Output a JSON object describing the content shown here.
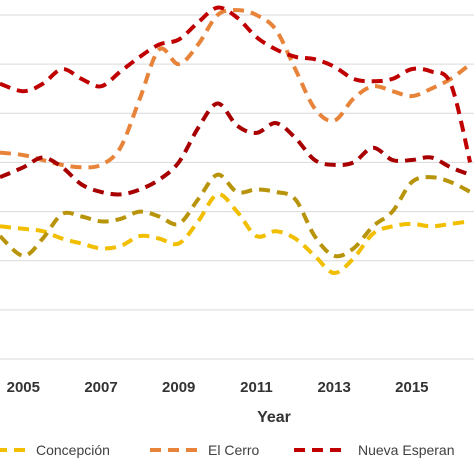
{
  "chart_data": {
    "type": "line",
    "xlabel": "Year",
    "ylabel": "",
    "title": "",
    "x_ticks": [
      "2005",
      "2007",
      "2009",
      "2011",
      "2013",
      "2015"
    ],
    "xlim": [
      2004.4,
      2016.6
    ],
    "ylim": [
      0,
      7
    ],
    "grid": true,
    "legend_position": "bottom",
    "x": [
      2004.4,
      2005,
      2005.5,
      2006,
      2006.5,
      2007,
      2007.5,
      2008,
      2008.5,
      2009,
      2009.5,
      2010,
      2010.5,
      2011,
      2011.5,
      2012,
      2012.5,
      2013,
      2013.5,
      2014,
      2014.5,
      2015,
      2015.5,
      2016,
      2016.5
    ],
    "series": [
      {
        "name": "Concepción",
        "color": "#F2BE00",
        "values": [
          2.7,
          2.65,
          2.6,
          2.45,
          2.35,
          2.25,
          2.3,
          2.5,
          2.45,
          2.35,
          2.8,
          3.35,
          3.0,
          2.5,
          2.6,
          2.45,
          2.1,
          1.75,
          2.05,
          2.55,
          2.7,
          2.75,
          2.7,
          2.75,
          2.8
        ]
      },
      {
        "name": "El Cerro",
        "color": "#E8833A",
        "values": [
          4.2,
          4.15,
          4.05,
          3.95,
          3.9,
          3.95,
          4.3,
          5.3,
          6.3,
          6.0,
          6.4,
          7.0,
          7.1,
          7.0,
          6.7,
          5.9,
          5.1,
          4.85,
          5.3,
          5.55,
          5.45,
          5.35,
          5.5,
          5.7,
          6.0
        ]
      },
      {
        "name": "Nueva Esperanza",
        "color": "#C00000",
        "values": [
          5.6,
          5.45,
          5.6,
          5.9,
          5.7,
          5.55,
          5.85,
          6.15,
          6.4,
          6.5,
          6.85,
          7.15,
          6.95,
          6.55,
          6.3,
          6.15,
          6.1,
          5.95,
          5.7,
          5.65,
          5.7,
          5.9,
          5.85,
          5.6,
          4.0
        ]
      },
      {
        "name": "",
        "color": "#B8940A",
        "values": [
          2.5,
          2.1,
          2.45,
          2.95,
          2.9,
          2.8,
          2.85,
          3.0,
          2.9,
          2.75,
          3.25,
          3.75,
          3.4,
          3.45,
          3.4,
          3.25,
          2.5,
          2.1,
          2.25,
          2.7,
          3.0,
          3.6,
          3.7,
          3.6,
          3.4
        ]
      },
      {
        "name": "",
        "color": "#A80000",
        "values": [
          3.7,
          3.9,
          4.1,
          3.9,
          3.55,
          3.4,
          3.35,
          3.45,
          3.65,
          4.0,
          4.7,
          5.2,
          4.75,
          4.6,
          4.8,
          4.5,
          4.05,
          3.95,
          4.0,
          4.3,
          4.05,
          4.05,
          4.1,
          3.9,
          3.75
        ]
      }
    ],
    "legend": [
      {
        "label": "Concepción",
        "color": "#F2BE00"
      },
      {
        "label": "El Cerro",
        "color": "#E8833A"
      },
      {
        "label": "Nueva Esperan",
        "color": "#C00000"
      }
    ]
  }
}
